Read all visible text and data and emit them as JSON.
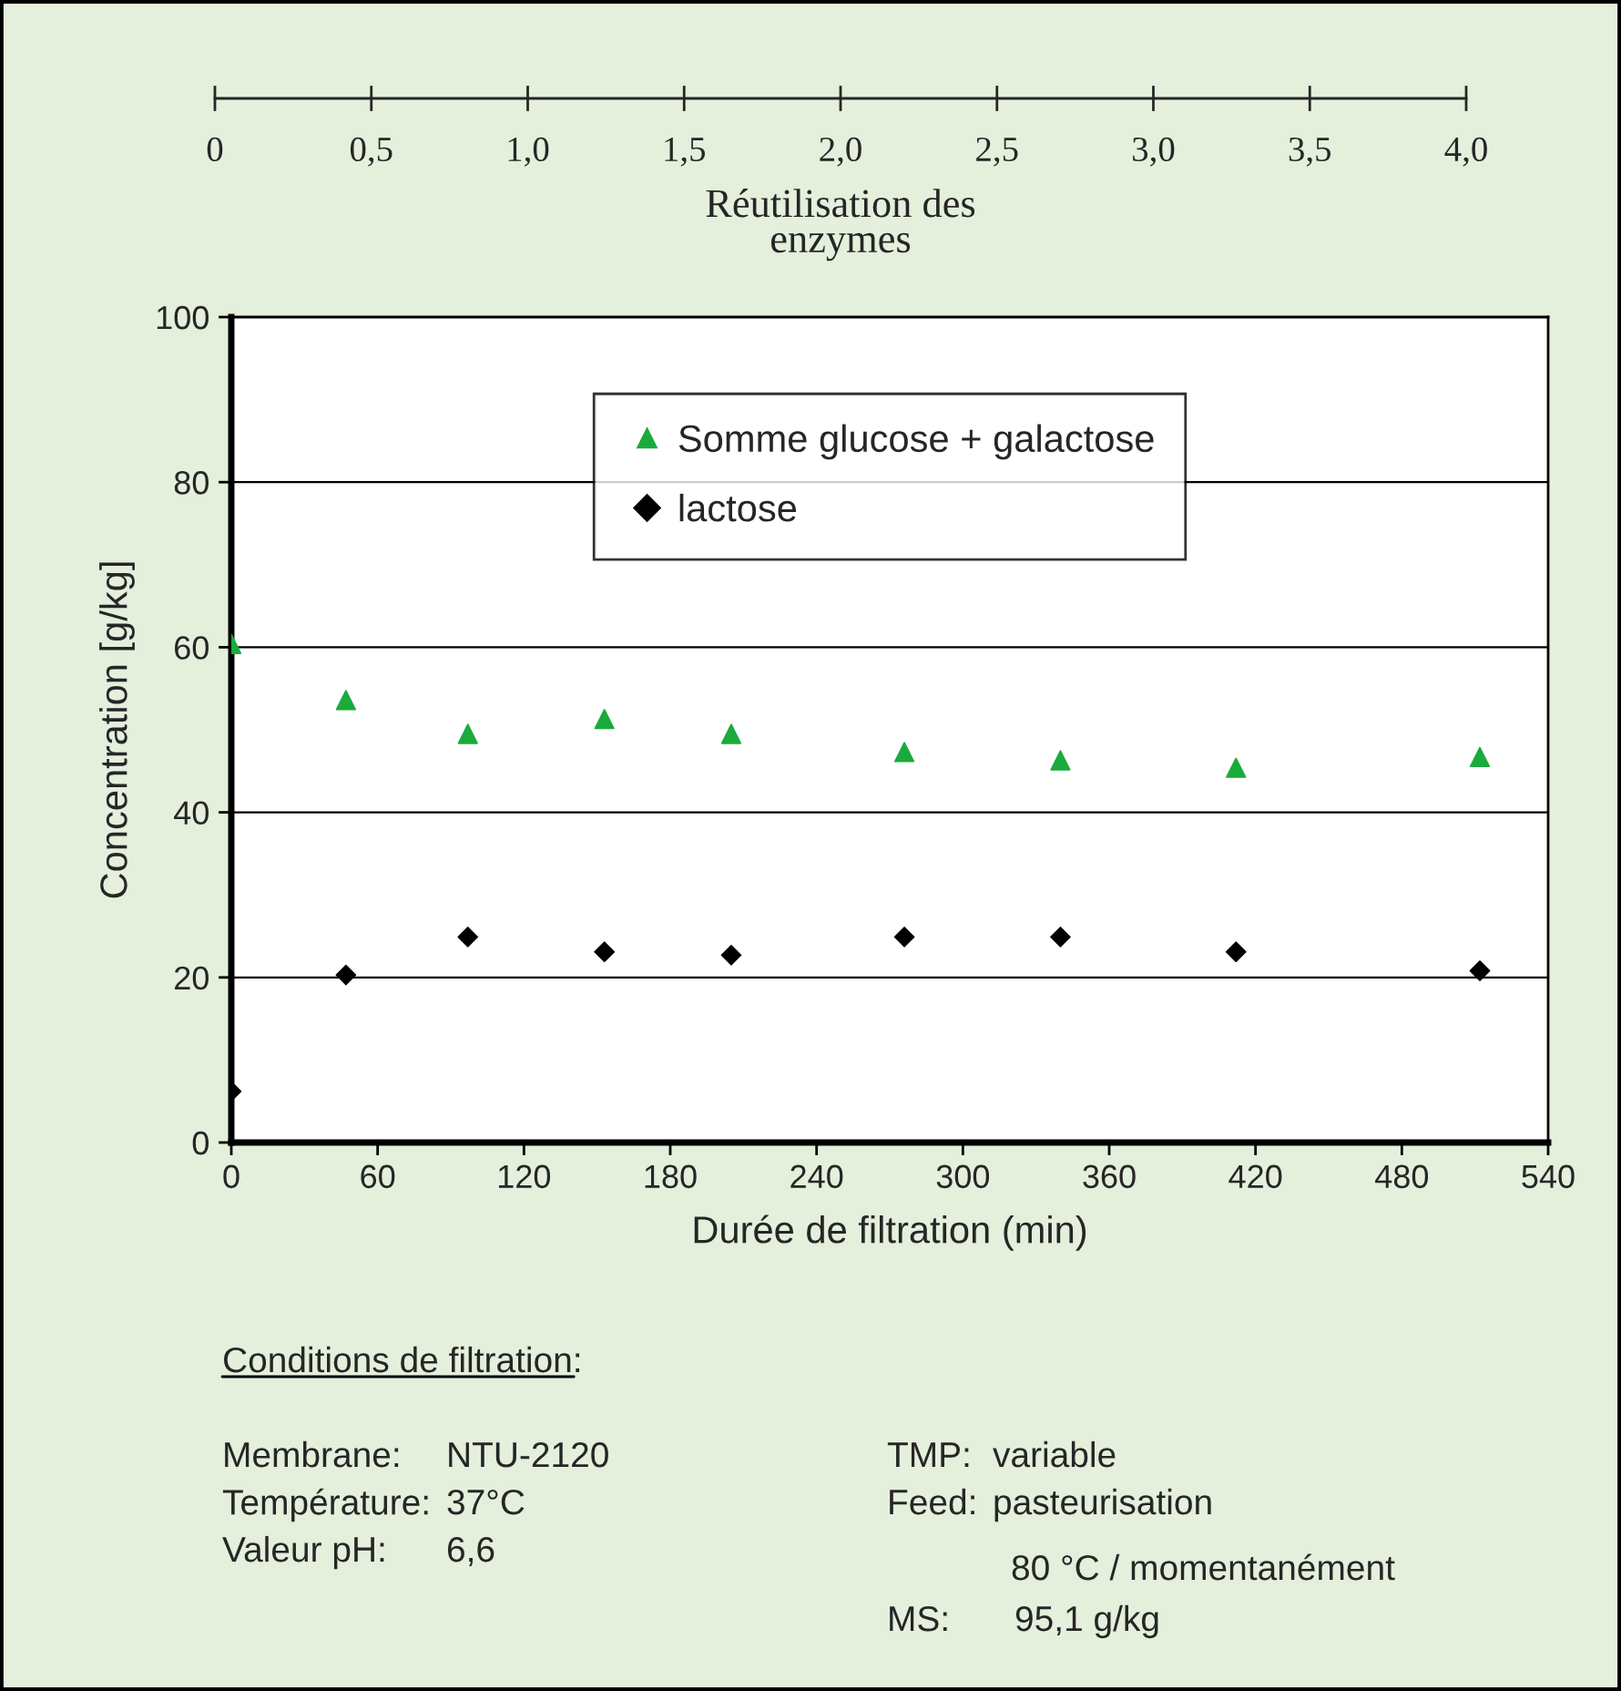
{
  "chart_data": {
    "type": "scatter",
    "xlabel": "Durée de filtration (min)",
    "ylabel": "Concentration [g/kg]",
    "x2label": "Réutilisation des\nenzymes",
    "x": [
      0,
      47,
      97,
      153,
      205,
      276,
      340,
      412,
      512
    ],
    "series": [
      {
        "name": "Somme glucose + galactose",
        "color": "#1aab3c",
        "marker": "triangle",
        "values": [
          60.4,
          53.6,
          49.5,
          51.3,
          49.5,
          47.3,
          46.3,
          45.4,
          46.7
        ]
      },
      {
        "name": "lactose",
        "color": "#000000",
        "marker": "diamond",
        "values": [
          6.2,
          20.3,
          24.9,
          23.1,
          22.7,
          24.9,
          24.9,
          23.1,
          20.8
        ]
      }
    ],
    "xlim": [
      0,
      540
    ],
    "xticks": [
      0,
      60,
      120,
      180,
      240,
      300,
      360,
      420,
      480,
      540
    ],
    "ylim": [
      0,
      100
    ],
    "yticks": [
      0,
      20,
      40,
      60,
      80,
      100
    ],
    "x2lim": [
      0,
      4
    ],
    "x2ticks": [
      0,
      {
        "value": 0.5,
        "label": "0,5"
      },
      {
        "value": 1,
        "label": "1,0"
      },
      {
        "value": 1.5,
        "label": "1,5"
      },
      {
        "value": 2,
        "label": "2,0"
      },
      {
        "value": 2.5,
        "label": "2,5"
      },
      {
        "value": 3,
        "label": "3,0"
      },
      {
        "value": 3.5,
        "label": "3,5"
      },
      {
        "value": 4,
        "label": "4,0"
      }
    ],
    "grid": "y",
    "legend": "top",
    "annotations": [
      "Conditions de filtration:",
      "Membrane:",
      "NTU-2120",
      "Température:",
      "37°C",
      "Valeur pH:",
      "6,6",
      "TMP:",
      "variable",
      "Feed:",
      "pasteurisation",
      "80 °C / momentanément",
      "MS:",
      "95,1 g/kg"
    ]
  }
}
